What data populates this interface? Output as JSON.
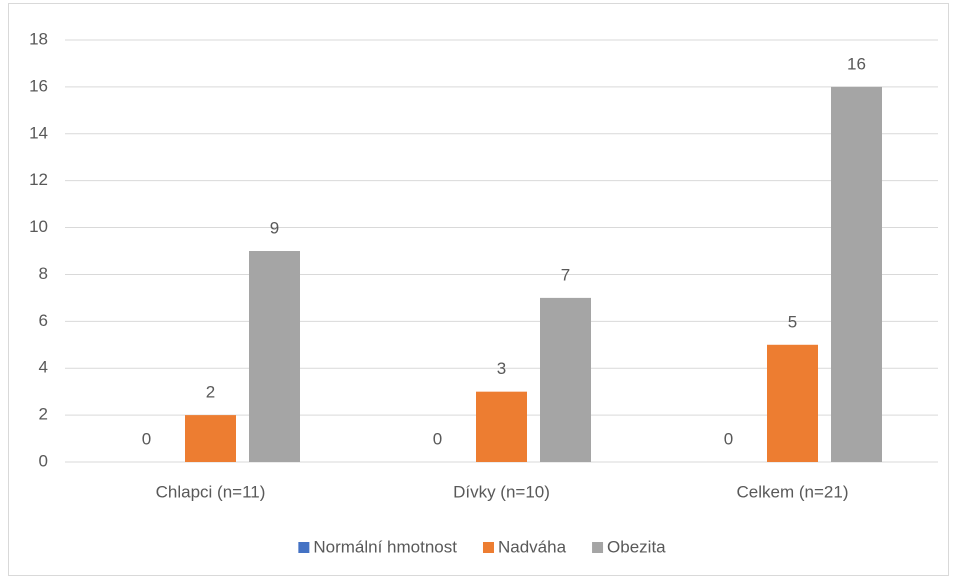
{
  "chart_data": {
    "type": "bar",
    "categories": [
      "Chlapci (n=11)",
      "Dívky (n=10)",
      "Celkem (n=21)"
    ],
    "series": [
      {
        "name": "Normální hmotnost",
        "color": "#4472c4",
        "values": [
          0,
          0,
          0
        ]
      },
      {
        "name": "Nadváha",
        "color": "#ed7d31",
        "values": [
          2,
          3,
          5
        ]
      },
      {
        "name": "Obezita",
        "color": "#a5a5a5",
        "values": [
          9,
          7,
          16
        ]
      }
    ],
    "ylim": [
      0,
      18
    ],
    "yticks": [
      0,
      2,
      4,
      6,
      8,
      10,
      12,
      14,
      16,
      18
    ],
    "grid": true,
    "legend": "bottom"
  }
}
